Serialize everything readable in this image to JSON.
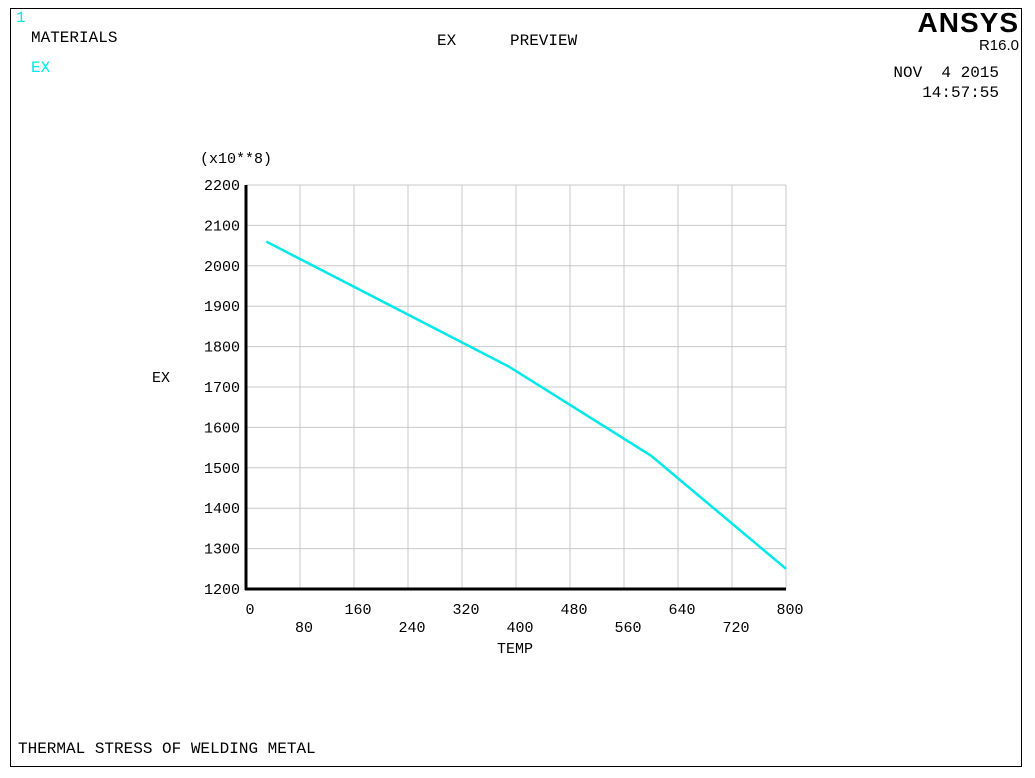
{
  "window_number": "1",
  "header": {
    "materials_label": "MATERIALS",
    "property_label": "EX",
    "title_prop": "EX",
    "title_mode": "PREVIEW",
    "brand": "ANSYS",
    "version": "R16.0",
    "date": "NOV  4 2015",
    "time": "14:57:55"
  },
  "footer": {
    "caption": "THERMAL STRESS OF WELDING METAL"
  },
  "colors": {
    "series": "#00e8e8",
    "grid": "#c8c8c8",
    "axis": "#000000"
  },
  "chart_data": {
    "type": "line",
    "xlabel": "TEMP",
    "ylabel": "EX",
    "y_multiplier": "(x10**8)",
    "xlim": [
      0,
      800
    ],
    "ylim": [
      1200,
      2200
    ],
    "x_ticks": [
      0,
      80,
      160,
      240,
      320,
      400,
      480,
      560,
      640,
      720,
      800
    ],
    "y_ticks": [
      1200,
      1300,
      1400,
      1500,
      1600,
      1700,
      1800,
      1900,
      2000,
      2100,
      2200
    ],
    "grid": true,
    "series": [
      {
        "x": [
          30,
          390,
          600,
          800
        ],
        "y": [
          2060,
          1750,
          1530,
          1250
        ]
      }
    ]
  }
}
